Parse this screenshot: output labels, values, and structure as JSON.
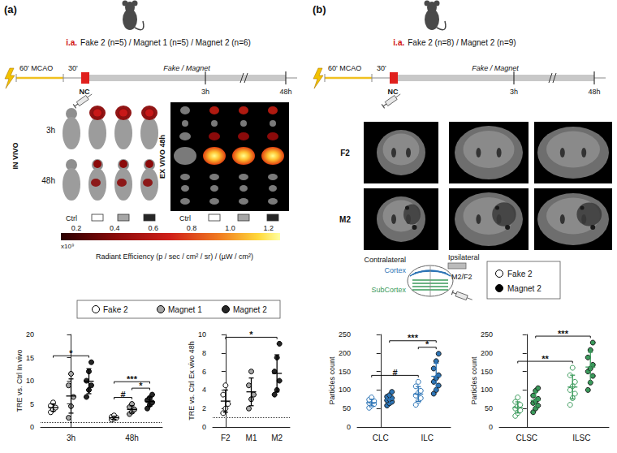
{
  "figure": {
    "panels": [
      {
        "label": "(a)",
        "injection": {
          "route": "i.a.",
          "groups": "Fake 2 (n=5) / Magnet 1 (n=5) / Magnet 2 (n=6)"
        },
        "timeline": {
          "occlusion": "60' MCAO",
          "delay": "30'",
          "treatment": "Fake / Magnet",
          "nc": "NC",
          "marks": [
            "3h",
            "48h"
          ]
        },
        "imaging": {
          "in_vivo_label": "IN VIVO",
          "rows": [
            "3h",
            "48h"
          ],
          "ex_vivo_label": "EX VIVO 48h",
          "control_label": "Ctrl"
        },
        "colorbar": {
          "range": [
            0.12,
            1.26
          ],
          "ticks": [
            0.2,
            0.4,
            0.6,
            0.8,
            {
              "value": 1,
              "label": "1.0"
            },
            1.2
          ],
          "multiplier": "x10⁹",
          "title": "Radiant Efficiency (p / sec / cm² / sr) / (µW / cm²)"
        }
      },
      {
        "label": "(b)",
        "injection": {
          "route": "i.a.",
          "groups": "Fake 2 (n=8) / Magnet 2 (n=9)"
        },
        "timeline": {
          "occlusion": "60' MCAO",
          "delay": "30'",
          "treatment": "Fake / Magnet",
          "nc": "NC",
          "marks": [
            "3h",
            "48h"
          ]
        },
        "imaging": {
          "rows": [
            "F2",
            "M2"
          ]
        },
        "schematic": {
          "contralateral": "Contralateral",
          "ipsilateral": "Ipsilateral",
          "cortex": "Cortex",
          "subcortex": "SubCortex",
          "device": "M2/F2"
        }
      }
    ]
  },
  "chart_data": [
    {
      "type": "scatter",
      "y_label": "TRE vs. Ctrl In vivo",
      "categories": [
        "3h",
        "48h"
      ],
      "ylim": [
        0,
        20
      ],
      "yticks": [
        0,
        5,
        10,
        15,
        20
      ],
      "grid": false,
      "baseline": 1,
      "series": [
        {
          "name": "Fake 2",
          "color": "#ffffff",
          "marker": "filled",
          "values": [
            [
              3.2,
              3.8,
              4.2,
              4.6,
              5.3
            ],
            [
              1.6,
              1.8,
              2.0,
              2.2,
              2.5
            ]
          ],
          "mean": [
            4.2,
            2.0
          ],
          "sd": [
            0.8,
            0.35
          ]
        },
        {
          "name": "Magnet 1",
          "color": "#a6a6a6",
          "marker": "filled",
          "values": [
            [
              2.0,
              4.5,
              6.5,
              9.0,
              11.5
            ],
            [
              2.8,
              3.3,
              3.8,
              4.3,
              5.0
            ]
          ],
          "mean": [
            6.7,
            3.8
          ],
          "sd": [
            3.7,
            0.8
          ]
        },
        {
          "name": "Magnet 2",
          "color": "#262626",
          "marker": "filled",
          "values": [
            [
              6.5,
              8.0,
              9.0,
              10.0,
              12.0,
              14.0
            ],
            [
              4.0,
              4.8,
              5.3,
              5.8,
              6.3,
              7.0
            ]
          ],
          "mean": [
            9.9,
            5.5
          ],
          "sd": [
            2.7,
            1.0
          ]
        }
      ],
      "annotations": [
        {
          "text": "*",
          "from": {
            "category": "3h",
            "series": "Fake 2"
          },
          "to": {
            "category": "3h",
            "series": "Magnet 2"
          }
        },
        {
          "text": "#",
          "from": {
            "category": "48h",
            "series": "Fake 2"
          },
          "to": {
            "category": "48h",
            "series": "Magnet 1"
          }
        },
        {
          "text": "***",
          "from": {
            "category": "48h",
            "series": "Fake 2"
          },
          "to": {
            "category": "48h",
            "series": "Magnet 2"
          }
        },
        {
          "text": "*",
          "from": {
            "category": "48h",
            "series": "Magnet 1"
          },
          "to": {
            "category": "48h",
            "series": "Magnet 2"
          }
        }
      ]
    },
    {
      "type": "scatter",
      "y_label": "TRE vs. Ctrl Ex vivo 48h",
      "categories": [
        "F2",
        "M1",
        "M2"
      ],
      "ylim": [
        0,
        10
      ],
      "yticks": [
        0,
        2,
        4,
        6,
        8,
        10
      ],
      "grid": false,
      "baseline": 1,
      "series": [
        {
          "name": "Fake 2",
          "color": "#ffffff",
          "marker": "filled",
          "values": [
            [
              1.5,
              2.0,
              2.5,
              3.5,
              4.5
            ],
            null,
            null
          ],
          "mean": [
            2.8,
            null,
            null
          ],
          "sd": [
            1.2,
            null,
            null
          ]
        },
        {
          "name": "Magnet 1",
          "color": "#a6a6a6",
          "marker": "filled",
          "values": [
            null,
            [
              2.0,
              3.0,
              3.5,
              4.5,
              6.0
            ],
            null
          ],
          "mean": [
            null,
            3.8,
            null
          ],
          "sd": [
            null,
            1.5,
            null
          ]
        },
        {
          "name": "Magnet 2",
          "color": "#262626",
          "marker": "filled",
          "values": [
            null,
            null,
            [
              3.5,
              4.0,
              5.0,
              6.0,
              7.5,
              9.0
            ]
          ],
          "mean": [
            null,
            null,
            5.8
          ],
          "sd": [
            null,
            null,
            2.0
          ]
        }
      ],
      "annotations": [
        {
          "text": "*",
          "from": {
            "category": "F2",
            "series": "Fake 2"
          },
          "to": {
            "category": "M2",
            "series": "Magnet 2"
          }
        }
      ]
    },
    {
      "type": "scatter",
      "y_label": "Particles count",
      "categories": [
        "CLC",
        "ILC"
      ],
      "ylim": [
        0,
        250
      ],
      "yticks": [
        0,
        50,
        100,
        150,
        200,
        250
      ],
      "grid": false,
      "series": [
        {
          "name": "Fake 2",
          "color": "#2e75b6",
          "marker": "open",
          "values": [
            [
              52,
              58,
              62,
              65,
              68,
              70,
              74,
              80
            ],
            [
              60,
              70,
              78,
              85,
              92,
              98,
              110,
              122
            ]
          ],
          "mean": [
            66,
            89
          ],
          "sd": [
            9,
            20
          ]
        },
        {
          "name": "Magnet 2",
          "color": "#2e75b6",
          "marker": "filled",
          "values": [
            [
              58,
              64,
              68,
              72,
              75,
              78,
              82,
              86,
              95
            ],
            [
              90,
              100,
              112,
              122,
              132,
              140,
              158,
              178,
              198
            ]
          ],
          "mean": [
            75,
            137
          ],
          "sd": [
            11,
            35
          ]
        }
      ],
      "annotations": [
        {
          "text": "#",
          "from": {
            "category": "CLC",
            "series": "Fake 2"
          },
          "to": {
            "category": "ILC",
            "series": "Fake 2"
          }
        },
        {
          "text": "***",
          "from": {
            "category": "CLC",
            "series": "Magnet 2"
          },
          "to": {
            "category": "ILC",
            "series": "Magnet 2"
          }
        },
        {
          "text": "*",
          "from": {
            "category": "ILC",
            "series": "Fake 2"
          },
          "to": {
            "category": "ILC",
            "series": "Magnet 2"
          }
        }
      ]
    },
    {
      "type": "scatter",
      "y_label": "Particles count",
      "categories": [
        "CLSC",
        "ILSC"
      ],
      "ylim": [
        0,
        250
      ],
      "yticks": [
        0,
        50,
        100,
        150,
        200,
        250
      ],
      "grid": false,
      "series": [
        {
          "name": "Fake 2",
          "color": "#3a9a5b",
          "marker": "open",
          "values": [
            [
              30,
              38,
              45,
              50,
              55,
              60,
              68,
              80
            ],
            [
              60,
              78,
              90,
              100,
              110,
              122,
              140,
              160
            ]
          ],
          "mean": [
            53,
            108
          ],
          "sd": [
            15,
            32
          ]
        },
        {
          "name": "Magnet 2",
          "color": "#3a9a5b",
          "marker": "filled",
          "values": [
            [
              40,
              50,
              58,
              65,
              70,
              76,
              85,
              98,
              105
            ],
            [
              100,
              120,
              138,
              150,
              158,
              168,
              188,
              208,
              228
            ]
          ],
          "mean": [
            72,
            162
          ],
          "sd": [
            22,
            40
          ]
        }
      ],
      "annotations": [
        {
          "text": "**",
          "from": {
            "category": "CLSC",
            "series": "Fake 2"
          },
          "to": {
            "category": "ILSC",
            "series": "Fake 2"
          }
        },
        {
          "text": "***",
          "from": {
            "category": "CLSC",
            "series": "Magnet 2"
          },
          "to": {
            "category": "ILSC",
            "series": "Magnet 2"
          }
        }
      ]
    }
  ]
}
